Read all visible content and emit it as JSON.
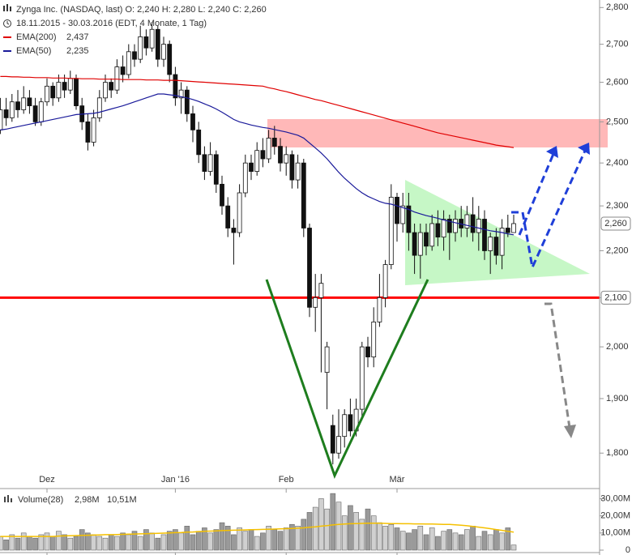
{
  "chart_data": {
    "type": "candlestick",
    "title": "Zynga Inc. (NASDAQ, last)  O: 2,240  H: 2,280  L: 2,240  C: 2,260",
    "subtitle": "18.11.2015 - 30.03.2016 (EDT, 4 Monate, 1 Tag)",
    "categories": [
      null,
      null,
      null,
      null,
      null,
      null,
      null,
      null,
      "Dez",
      null,
      null,
      null,
      null,
      null,
      null,
      null,
      null,
      null,
      null,
      null,
      null,
      null,
      null,
      null,
      null,
      null,
      null,
      null,
      null,
      null,
      "Jan '16",
      null,
      null,
      null,
      null,
      null,
      null,
      null,
      null,
      null,
      null,
      null,
      null,
      null,
      null,
      null,
      null,
      null,
      null,
      "Feb",
      null,
      null,
      null,
      null,
      null,
      null,
      null,
      null,
      null,
      null,
      null,
      null,
      null,
      null,
      null,
      null,
      null,
      null,
      "Mär",
      null,
      null,
      null,
      null,
      null,
      null,
      null,
      null,
      null,
      null,
      null,
      null,
      null,
      null,
      null,
      null,
      null,
      null,
      null,
      null
    ],
    "open": [
      2480,
      2530,
      2510,
      2550,
      2530,
      2560,
      2540,
      2500,
      2550,
      2590,
      2560,
      2600,
      2580,
      2610,
      2540,
      2500,
      2450,
      2510,
      2560,
      2600,
      2580,
      2640,
      2620,
      2680,
      2660,
      2720,
      2690,
      2740,
      2660,
      2700,
      2620,
      2560,
      2580,
      2520,
      2480,
      2420,
      2380,
      2420,
      2350,
      2300,
      2250,
      2240,
      2330,
      2400,
      2380,
      2430,
      2410,
      2460,
      2440,
      2400,
      2420,
      2360,
      2400,
      2250,
      2080,
      2100,
      1950,
      1850,
      1800,
      1830,
      1870,
      1840,
      1880,
      2000,
      1980,
      2050,
      2100,
      2170,
      2320,
      2260,
      2300,
      2240,
      2190,
      2240,
      2210,
      2260,
      2230,
      2270,
      2240,
      2270,
      2250,
      2280,
      2240,
      2270,
      2200,
      2230,
      2190,
      2250,
      2240
    ],
    "high": [
      2560,
      2560,
      2570,
      2580,
      2590,
      2580,
      2560,
      2560,
      2610,
      2600,
      2620,
      2620,
      2630,
      2620,
      2560,
      2520,
      2530,
      2580,
      2620,
      2610,
      2660,
      2670,
      2700,
      2700,
      2750,
      2740,
      2760,
      2750,
      2720,
      2710,
      2640,
      2600,
      2590,
      2540,
      2500,
      2440,
      2450,
      2430,
      2370,
      2320,
      2270,
      2350,
      2420,
      2420,
      2450,
      2460,
      2480,
      2490,
      2460,
      2440,
      2430,
      2420,
      2410,
      2260,
      2150,
      2150,
      2010,
      1870,
      1880,
      1880,
      1900,
      1900,
      2010,
      2020,
      2080,
      2150,
      2180,
      2350,
      2330,
      2330,
      2330,
      2260,
      2260,
      2260,
      2280,
      2290,
      2290,
      2280,
      2290,
      2300,
      2300,
      2320,
      2300,
      2290,
      2240,
      2250,
      2270,
      2280,
      2280
    ],
    "low": [
      2470,
      2490,
      2500,
      2510,
      2520,
      2520,
      2490,
      2490,
      2540,
      2540,
      2550,
      2560,
      2570,
      2530,
      2480,
      2430,
      2440,
      2500,
      2550,
      2560,
      2570,
      2600,
      2610,
      2640,
      2650,
      2670,
      2680,
      2640,
      2640,
      2600,
      2540,
      2520,
      2500,
      2450,
      2400,
      2360,
      2370,
      2330,
      2280,
      2230,
      2170,
      2230,
      2320,
      2360,
      2370,
      2390,
      2400,
      2420,
      2380,
      2370,
      2340,
      2340,
      2230,
      2060,
      2030,
      1950,
      1880,
      1780,
      1790,
      1810,
      1830,
      1830,
      1860,
      1960,
      1960,
      2040,
      2080,
      2160,
      2220,
      2240,
      2200,
      2150,
      2140,
      2190,
      2200,
      2210,
      2200,
      2180,
      2220,
      2230,
      2230,
      2220,
      2200,
      2180,
      2150,
      2170,
      2160,
      2230,
      2240
    ],
    "close": [
      2530,
      2510,
      2550,
      2530,
      2560,
      2540,
      2500,
      2550,
      2590,
      2560,
      2600,
      2580,
      2610,
      2540,
      2500,
      2450,
      2510,
      2560,
      2600,
      2580,
      2640,
      2620,
      2680,
      2660,
      2720,
      2690,
      2740,
      2660,
      2700,
      2620,
      2560,
      2580,
      2520,
      2480,
      2420,
      2380,
      2420,
      2350,
      2300,
      2250,
      2240,
      2330,
      2400,
      2380,
      2430,
      2410,
      2460,
      2440,
      2400,
      2420,
      2360,
      2400,
      2250,
      2080,
      2100,
      2130,
      2000,
      1800,
      1830,
      1870,
      1840,
      1880,
      2000,
      1980,
      2050,
      2100,
      2170,
      2320,
      2260,
      2300,
      2240,
      2190,
      2240,
      2210,
      2260,
      2230,
      2270,
      2240,
      2270,
      2250,
      2280,
      2240,
      2270,
      2200,
      2230,
      2190,
      2250,
      2240,
      2260
    ],
    "last_label": "2,260",
    "ylim": [
      1742,
      2821
    ],
    "log_scale": true,
    "yticks": [
      {
        "value": 1800,
        "label": "1,800"
      },
      {
        "value": 1900,
        "label": "1,900"
      },
      {
        "value": 2000,
        "label": "2,000"
      },
      {
        "value": 2100,
        "label": "2,100"
      },
      {
        "value": 2200,
        "label": "2,200"
      },
      {
        "value": 2300,
        "label": "2,300"
      },
      {
        "value": 2400,
        "label": "2,400"
      },
      {
        "value": 2500,
        "label": "2,500"
      },
      {
        "value": 2600,
        "label": "2,600"
      },
      {
        "value": 2700,
        "label": "2,700"
      },
      {
        "value": 2800,
        "label": "2,800"
      }
    ],
    "series": [
      {
        "name": "EMA(200)",
        "color": "#e00000",
        "legend_label": "2,437",
        "values": [
          2615,
          2615,
          2614,
          2614,
          2613,
          2613,
          2612,
          2612,
          2612,
          2611,
          2611,
          2611,
          2610,
          2610,
          2609,
          2609,
          2609,
          2608,
          2608,
          2608,
          2608,
          2607,
          2607,
          2607,
          2607,
          2606,
          2606,
          2606,
          2605,
          2605,
          2605,
          2604,
          2603,
          2602,
          2601,
          2600,
          2599,
          2598,
          2597,
          2596,
          2595,
          2594,
          2593,
          2592,
          2591,
          2590,
          2586,
          2583,
          2579,
          2576,
          2572,
          2568,
          2564,
          2560,
          2556,
          2553,
          2549,
          2545,
          2541,
          2537,
          2533,
          2529,
          2525,
          2521,
          2517,
          2513,
          2509,
          2505,
          2501,
          2497,
          2493,
          2489,
          2485,
          2481,
          2477,
          2473,
          2470,
          2467,
          2464,
          2461,
          2458,
          2455,
          2452,
          2449,
          2446,
          2443,
          2441,
          2439,
          2437
        ]
      },
      {
        "name": "EMA(50)",
        "color": "#1a1a9a",
        "legend_label": "2,235",
        "values": [
          2480,
          2482,
          2485,
          2488,
          2491,
          2494,
          2497,
          2500,
          2503,
          2506,
          2509,
          2512,
          2515,
          2518,
          2519,
          2520,
          2521,
          2524,
          2528,
          2532,
          2536,
          2540,
          2545,
          2550,
          2555,
          2560,
          2565,
          2570,
          2570,
          2568,
          2566,
          2563,
          2560,
          2556,
          2551,
          2545,
          2539,
          2532,
          2524,
          2515,
          2506,
          2500,
          2496,
          2492,
          2489,
          2486,
          2484,
          2481,
          2478,
          2475,
          2471,
          2467,
          2460,
          2448,
          2436,
          2424,
          2410,
          2394,
          2378,
          2364,
          2352,
          2340,
          2330,
          2322,
          2316,
          2310,
          2306,
          2304,
          2300,
          2296,
          2292,
          2286,
          2282,
          2278,
          2275,
          2272,
          2268,
          2265,
          2262,
          2259,
          2256,
          2253,
          2250,
          2247,
          2244,
          2242,
          2240,
          2237,
          2235
        ]
      }
    ],
    "support": {
      "value": 2100,
      "label": "2,100",
      "color": "#ff0000"
    },
    "volume": {
      "name": "Volume(28)",
      "legend_label": "2,98M",
      "values": [
        8,
        6,
        9,
        7,
        10,
        8,
        7,
        9,
        10,
        8,
        11,
        9,
        7,
        8,
        12,
        10,
        9,
        8,
        7,
        9,
        8,
        10,
        9,
        11,
        8,
        12,
        10,
        7,
        9,
        11,
        12,
        10,
        14,
        9,
        11,
        13,
        10,
        12,
        16,
        14,
        9,
        13,
        11,
        12,
        8,
        10,
        14,
        12,
        11,
        13,
        15,
        14,
        18,
        22,
        25,
        30,
        24,
        33,
        28,
        20,
        26,
        22,
        18,
        24,
        20,
        16,
        14,
        15,
        13,
        11,
        10,
        12,
        14,
        9,
        13,
        8,
        11,
        12,
        10,
        9,
        12,
        14,
        8,
        11,
        9,
        12,
        10,
        13,
        2.98
      ],
      "average": {
        "color": "#f5c000",
        "legend_label": "10,51M",
        "values": [
          8,
          8,
          8,
          8,
          8,
          8,
          8,
          8,
          8,
          8,
          8.2,
          8.3,
          8.4,
          8.5,
          8.6,
          8.7,
          8.8,
          8.9,
          9,
          9,
          9.1,
          9.2,
          9.3,
          9.4,
          9.5,
          9.6,
          9.7,
          9.8,
          9.9,
          10,
          10.2,
          10.3,
          10.5,
          10.6,
          10.8,
          11,
          11.1,
          11.2,
          11.4,
          11.5,
          11.6,
          11.7,
          11.8,
          11.9,
          12,
          12.1,
          12.2,
          12.3,
          12.4,
          12.5,
          12.6,
          12.8,
          13,
          13.3,
          13.6,
          14,
          14.3,
          14.7,
          15,
          15.2,
          15.4,
          15.5,
          15.6,
          15.7,
          15.7,
          15.7,
          15.6,
          15.5,
          15.5,
          15.4,
          15.4,
          15.3,
          15.3,
          15.2,
          15.2,
          15.1,
          15,
          15,
          14.8,
          14.5,
          14.2,
          13.8,
          13.4,
          13,
          12.5,
          12,
          11.5,
          11,
          10.51
        ]
      },
      "ylim": [
        0,
        34
      ],
      "yticks": [
        0,
        {
          "value": 10,
          "label": "10,00M"
        },
        {
          "value": 20,
          "label": "20,00M"
        },
        {
          "value": 30,
          "label": "30,00M"
        }
      ]
    }
  }
}
